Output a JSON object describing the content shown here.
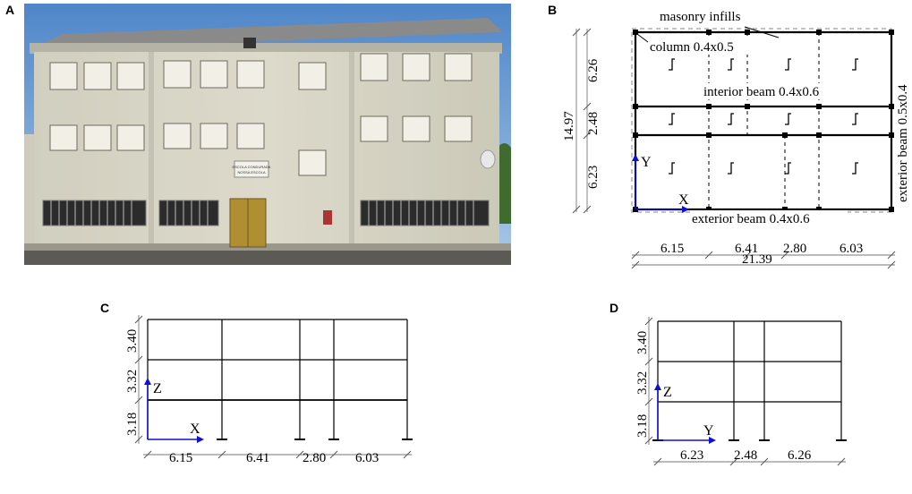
{
  "panels": {
    "a": "A",
    "b": "B",
    "c": "C",
    "d": "D"
  },
  "photo": {
    "sign_line1": "ESCOLA CONDURADA",
    "sign_line2": "NOSSA ESCOLA"
  },
  "plan": {
    "masonry_label": "masonry infills",
    "column_label": "column 0.4x0.5",
    "interior_beam_label": "interior beam 0.4x0.6",
    "exterior_beam_bottom_label": "exterior beam 0.4x0.6",
    "exterior_beam_right_label": "exterior beam 0.5x0.4",
    "axis_x": "X",
    "axis_y": "Y",
    "dims_x": [
      "6.15",
      "6.41",
      "2.80",
      "6.03"
    ],
    "total_x": "21.39",
    "dims_y": [
      "6.26",
      "2.48",
      "6.23"
    ],
    "total_y": "14.97"
  },
  "elevation_x": {
    "axis_h": "X",
    "axis_v": "Z",
    "story_heights": [
      "3.40",
      "3.32",
      "3.18"
    ],
    "spans": [
      "6.15",
      "6.41",
      "2.80",
      "6.03"
    ]
  },
  "elevation_y": {
    "axis_h": "Y",
    "axis_v": "Z",
    "story_heights": [
      "3.40",
      "3.32",
      "3.18"
    ],
    "spans": [
      "6.23",
      "2.48",
      "6.26"
    ]
  }
}
